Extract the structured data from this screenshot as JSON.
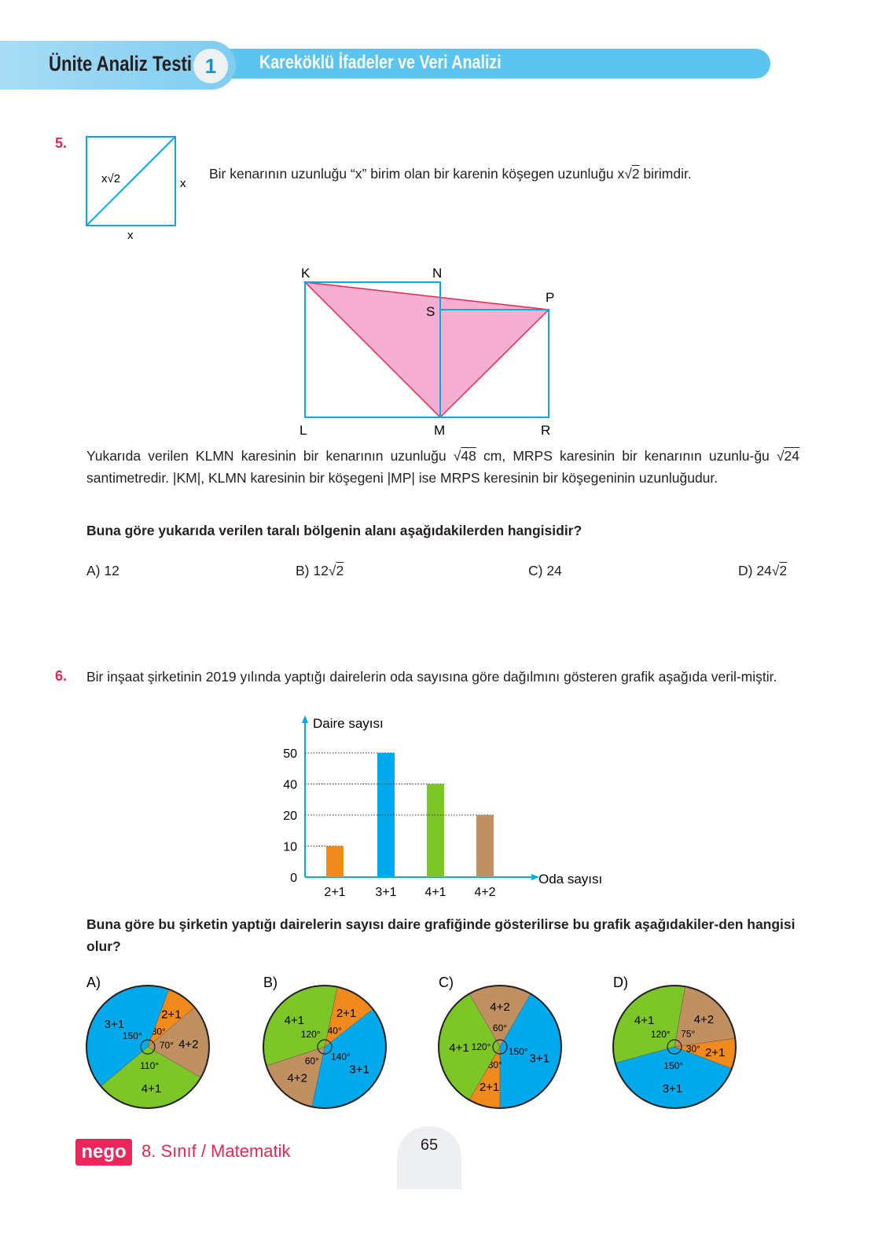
{
  "header": {
    "title": "Ünite Analiz Testi",
    "test_number": "1",
    "subtitle": "Kareköklü İfadeler ve Veri Analizi",
    "accent": "#5bc4ef"
  },
  "q5": {
    "number": "5.",
    "square_labels": {
      "diagonal": "x√2",
      "side_right": "x",
      "side_bottom": "x"
    },
    "intro": [
      "Bir kenarının uzunluğu “x” birim olan bir karenin köşegen uzunluğu x",
      "2",
      " birimdir."
    ],
    "points": {
      "K": "K",
      "N": "N",
      "P": "P",
      "S": "S",
      "L": "L",
      "M": "M",
      "R": "R"
    },
    "shade_color": "#f6aed3",
    "body": [
      "Yukarıda verilen KLMN karesinin bir kenarının uzunluğu ",
      "48",
      " cm, MRPS karesinin bir kenarının uzunlu-ğu ",
      "24",
      " santimetredir. |KM|, KLMN karesinin bir köşegeni |MP| ise MRPS keresinin bir köşegeninin uzunluğudur."
    ],
    "question": "Buna göre yukarıda verilen taralı bölgenin alanı aşağıdakilerden hangisidir?",
    "options": [
      {
        "label": "A) 12",
        "root": ""
      },
      {
        "label": "B) 12",
        "root": "2"
      },
      {
        "label": "C) 24",
        "root": ""
      },
      {
        "label": "D) 24",
        "root": "2"
      }
    ]
  },
  "q6": {
    "number": "6.",
    "intro": "Bir inşaat şirketinin 2019 yılında yaptığı dairelerin oda sayısına göre dağılmını gösteren grafik aşağıda veril-miştir.",
    "question": "Buna göre bu şirketin yaptığı dairelerin sayısı daire grafiğinde gösterilirse bu grafik aşağıdakiler-den hangisi olur?"
  },
  "chart_data": [
    {
      "type": "bar",
      "ylabel": "Daire sayısı",
      "xlabel": "Oda sayısı",
      "yticks": [
        "0",
        "10",
        "20",
        "40",
        "50"
      ],
      "categories": [
        "2+1",
        "3+1",
        "4+1",
        "4+2"
      ],
      "values": [
        10,
        50,
        40,
        20
      ],
      "colors": [
        "#f18a1c",
        "#00a9ea",
        "#7cc627",
        "#c09060"
      ],
      "grid": "dotted reference lines"
    },
    {
      "type": "pie",
      "label": "A)",
      "slices": [
        {
          "name": "2+1",
          "angle": 30,
          "color": "#f18a1c"
        },
        {
          "name": "4+2",
          "angle": 70,
          "color": "#c09060"
        },
        {
          "name": "4+1",
          "angle": 110,
          "color": "#7cc627"
        },
        {
          "name": "3+1",
          "angle": 150,
          "color": "#00a9ea"
        }
      ]
    },
    {
      "type": "pie",
      "label": "B)",
      "slices": [
        {
          "name": "2+1",
          "angle": 40,
          "color": "#f18a1c"
        },
        {
          "name": "3+1",
          "angle": 140,
          "color": "#00a9ea"
        },
        {
          "name": "4+2",
          "angle": 60,
          "color": "#c09060"
        },
        {
          "name": "4+1",
          "angle": 120,
          "color": "#7cc627"
        }
      ]
    },
    {
      "type": "pie",
      "label": "C)",
      "slices": [
        {
          "name": "4+2",
          "angle": 60,
          "color": "#c09060"
        },
        {
          "name": "3+1",
          "angle": 150,
          "color": "#00a9ea"
        },
        {
          "name": "2+1",
          "angle": 30,
          "color": "#f18a1c"
        },
        {
          "name": "4+1",
          "angle": 120,
          "color": "#7cc627"
        }
      ]
    },
    {
      "type": "pie",
      "label": "D)",
      "slices": [
        {
          "name": "4+2",
          "angle": 75,
          "color": "#c09060"
        },
        {
          "name": "2+1",
          "angle": 30,
          "color": "#f18a1c"
        },
        {
          "name": "3+1",
          "angle": 150,
          "color": "#00a9ea"
        },
        {
          "name": "4+1",
          "angle": 120,
          "color": "#7cc627"
        }
      ]
    }
  ],
  "footer": {
    "logo": "nego",
    "course": "8. Sınıf / Matematik",
    "page": "65"
  }
}
